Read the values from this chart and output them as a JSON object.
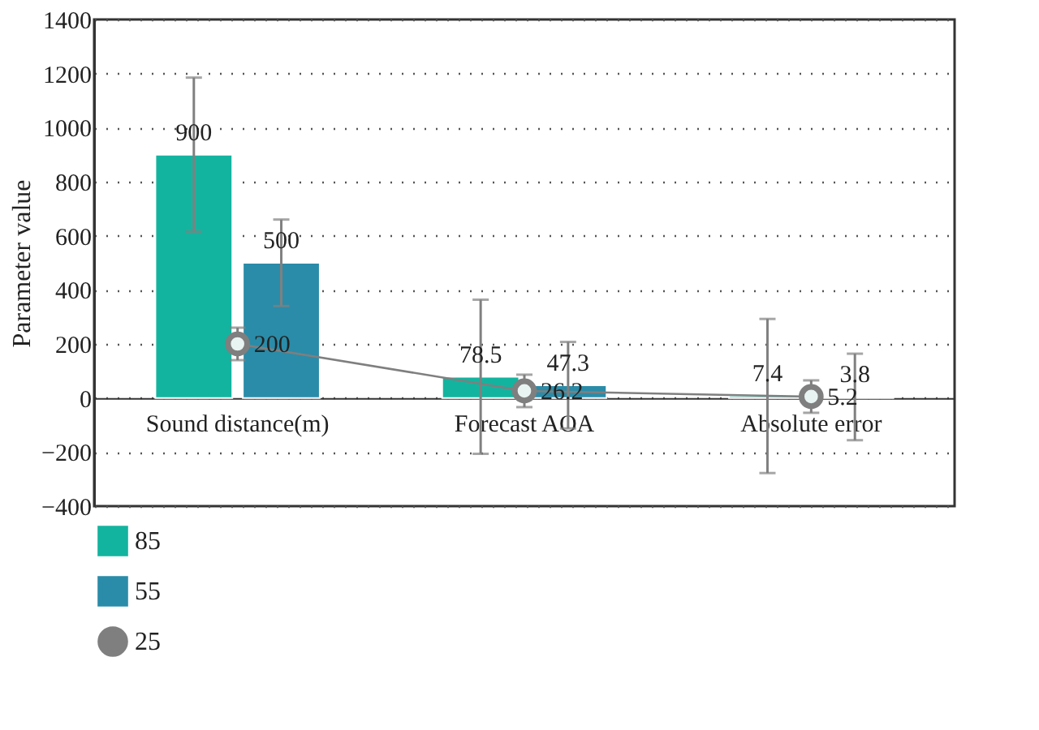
{
  "chart_data": {
    "type": "bar",
    "ylabel": "Parameter value",
    "categories": [
      "Sound distance(m)",
      "Forecast AOA",
      "Absolute error"
    ],
    "series": [
      {
        "name": "85",
        "color": "#13b49f",
        "values": [
          900,
          78.5,
          7.4
        ],
        "errors": [
          285,
          285,
          285
        ]
      },
      {
        "name": "55",
        "color": "#2a8ca8",
        "values": [
          500,
          47.3,
          3.8
        ],
        "errors": [
          160,
          160,
          160
        ]
      },
      {
        "name": "25",
        "type": "line",
        "color": "#7f7f7f",
        "values": [
          200,
          26.2,
          5.2
        ],
        "errors": [
          60,
          60,
          60
        ],
        "marker": "circle",
        "line_style": "solid"
      }
    ],
    "ylim": [
      -400,
      1400
    ],
    "yticks": [
      -400,
      -200,
      0,
      200,
      400,
      600,
      800,
      1000,
      1200,
      1400
    ],
    "grid": "y",
    "legend": "bottom",
    "data_labels": true
  }
}
